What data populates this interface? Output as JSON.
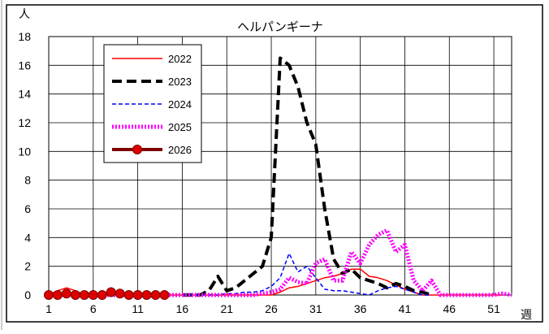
{
  "chart_data": {
    "type": "line",
    "title": "ヘルパンギーナ",
    "ylabel": "人",
    "xlabel": "週",
    "ylim": [
      0,
      18
    ],
    "xlim": [
      1,
      53
    ],
    "y_ticks": [
      0,
      2,
      4,
      6,
      8,
      10,
      12,
      14,
      16,
      18
    ],
    "x_ticks": [
      1,
      6,
      11,
      16,
      21,
      26,
      31,
      36,
      41,
      46,
      51
    ],
    "grid": true,
    "legend_position": "top-left",
    "series": [
      {
        "name": "2022",
        "color": "#ff0000",
        "style": "solid",
        "points": [
          [
            1,
            0
          ],
          [
            2,
            0.3
          ],
          [
            3,
            0.5
          ],
          [
            4,
            0.3
          ],
          [
            5,
            0
          ],
          [
            6,
            0
          ],
          [
            7,
            0
          ],
          [
            8,
            0
          ],
          [
            9,
            0
          ],
          [
            10,
            0
          ],
          [
            11,
            0
          ],
          [
            12,
            0
          ],
          [
            13,
            0
          ],
          [
            14,
            0
          ],
          [
            15,
            0
          ],
          [
            16,
            0
          ],
          [
            17,
            0
          ],
          [
            18,
            0
          ],
          [
            19,
            0
          ],
          [
            20,
            0
          ],
          [
            21,
            0
          ],
          [
            22,
            0
          ],
          [
            23,
            0
          ],
          [
            24,
            0
          ],
          [
            25,
            0
          ],
          [
            26,
            0
          ],
          [
            27,
            0.2
          ],
          [
            28,
            0.5
          ],
          [
            29,
            0.6
          ],
          [
            30,
            0.8
          ],
          [
            31,
            1.0
          ],
          [
            32,
            1.2
          ],
          [
            33,
            1.3
          ],
          [
            34,
            1.5
          ],
          [
            35,
            1.8
          ],
          [
            36,
            1.8
          ],
          [
            37,
            1.3
          ],
          [
            38,
            1.2
          ],
          [
            39,
            1.0
          ],
          [
            40,
            0.7
          ],
          [
            41,
            0.4
          ],
          [
            42,
            0.2
          ],
          [
            43,
            0
          ],
          [
            44,
            0
          ],
          [
            45,
            0
          ],
          [
            46,
            0
          ],
          [
            47,
            0
          ],
          [
            48,
            0
          ],
          [
            49,
            0
          ],
          [
            50,
            0
          ],
          [
            51,
            0
          ],
          [
            52,
            0
          ]
        ]
      },
      {
        "name": "2023",
        "color": "#000000",
        "style": "dash-bold",
        "points": [
          [
            16,
            0
          ],
          [
            17,
            0
          ],
          [
            18,
            0
          ],
          [
            19,
            0.3
          ],
          [
            20,
            1.3
          ],
          [
            21,
            0.3
          ],
          [
            22,
            0.5
          ],
          [
            23,
            1.0
          ],
          [
            24,
            1.5
          ],
          [
            25,
            2.0
          ],
          [
            26,
            4.0
          ],
          [
            27,
            16.5
          ],
          [
            28,
            16.0
          ],
          [
            29,
            14.5
          ],
          [
            30,
            12.0
          ],
          [
            31,
            10.5
          ],
          [
            32,
            6.0
          ],
          [
            33,
            2.5
          ],
          [
            34,
            1.5
          ],
          [
            35,
            1.8
          ],
          [
            36,
            1.2
          ],
          [
            37,
            1.0
          ],
          [
            38,
            0.8
          ],
          [
            39,
            0.5
          ],
          [
            40,
            0.8
          ],
          [
            41,
            0.6
          ],
          [
            42,
            0.3
          ],
          [
            43,
            0.2
          ],
          [
            44,
            0
          ]
        ]
      },
      {
        "name": "2024",
        "color": "#0000ff",
        "style": "dash-thin",
        "points": [
          [
            16,
            0
          ],
          [
            17,
            0
          ],
          [
            18,
            0
          ],
          [
            19,
            0
          ],
          [
            20,
            0
          ],
          [
            21,
            0.1
          ],
          [
            22,
            0.1
          ],
          [
            23,
            0.2
          ],
          [
            24,
            0.2
          ],
          [
            25,
            0.3
          ],
          [
            26,
            0.6
          ],
          [
            27,
            1.2
          ],
          [
            28,
            2.9
          ],
          [
            29,
            1.6
          ],
          [
            30,
            2.0
          ],
          [
            31,
            1.2
          ],
          [
            32,
            0.4
          ],
          [
            33,
            0.3
          ],
          [
            34,
            0.3
          ],
          [
            35,
            0.2
          ],
          [
            36,
            0.1
          ],
          [
            37,
            0
          ],
          [
            38,
            0.3
          ],
          [
            39,
            0.5
          ],
          [
            40,
            0.6
          ],
          [
            41,
            0.4
          ],
          [
            42,
            0.2
          ],
          [
            43,
            0
          ],
          [
            44,
            0
          ]
        ]
      },
      {
        "name": "2025",
        "color": "#ff00ff",
        "style": "dotted-bold",
        "points": [
          [
            1,
            0
          ],
          [
            2,
            0
          ],
          [
            3,
            0
          ],
          [
            4,
            0
          ],
          [
            5,
            0
          ],
          [
            6,
            0
          ],
          [
            7,
            0
          ],
          [
            8,
            0
          ],
          [
            9,
            0
          ],
          [
            10,
            0
          ],
          [
            11,
            0
          ],
          [
            12,
            0
          ],
          [
            13,
            0
          ],
          [
            14,
            0
          ],
          [
            15,
            0
          ],
          [
            16,
            0
          ],
          [
            17,
            0
          ],
          [
            18,
            0
          ],
          [
            19,
            0
          ],
          [
            20,
            0
          ],
          [
            21,
            0
          ],
          [
            22,
            0
          ],
          [
            23,
            0
          ],
          [
            24,
            0
          ],
          [
            25,
            0.1
          ],
          [
            26,
            0.2
          ],
          [
            27,
            0.4
          ],
          [
            28,
            1.2
          ],
          [
            29,
            0.9
          ],
          [
            30,
            0.8
          ],
          [
            31,
            2.2
          ],
          [
            32,
            2.5
          ],
          [
            33,
            1.0
          ],
          [
            34,
            1.0
          ],
          [
            35,
            3.0
          ],
          [
            36,
            2.2
          ],
          [
            37,
            3.5
          ],
          [
            38,
            4.2
          ],
          [
            39,
            4.5
          ],
          [
            40,
            3.0
          ],
          [
            41,
            3.5
          ],
          [
            42,
            1.0
          ],
          [
            43,
            0.3
          ],
          [
            44,
            1.0
          ],
          [
            45,
            0
          ],
          [
            46,
            0
          ],
          [
            47,
            0
          ],
          [
            48,
            0
          ],
          [
            49,
            0
          ],
          [
            50,
            0
          ],
          [
            51,
            0
          ],
          [
            52,
            0.1
          ],
          [
            53,
            0
          ]
        ]
      },
      {
        "name": "2026",
        "color": "#800000",
        "marker_color": "#dd0000",
        "style": "solid-bold-markers",
        "points": [
          [
            1,
            0
          ],
          [
            2,
            0
          ],
          [
            3,
            0.1
          ],
          [
            4,
            0
          ],
          [
            5,
            0
          ],
          [
            6,
            0
          ],
          [
            7,
            0
          ],
          [
            8,
            0.2
          ],
          [
            9,
            0.1
          ],
          [
            10,
            0
          ],
          [
            11,
            0
          ],
          [
            12,
            0
          ],
          [
            13,
            0
          ],
          [
            14,
            0
          ]
        ]
      }
    ]
  }
}
